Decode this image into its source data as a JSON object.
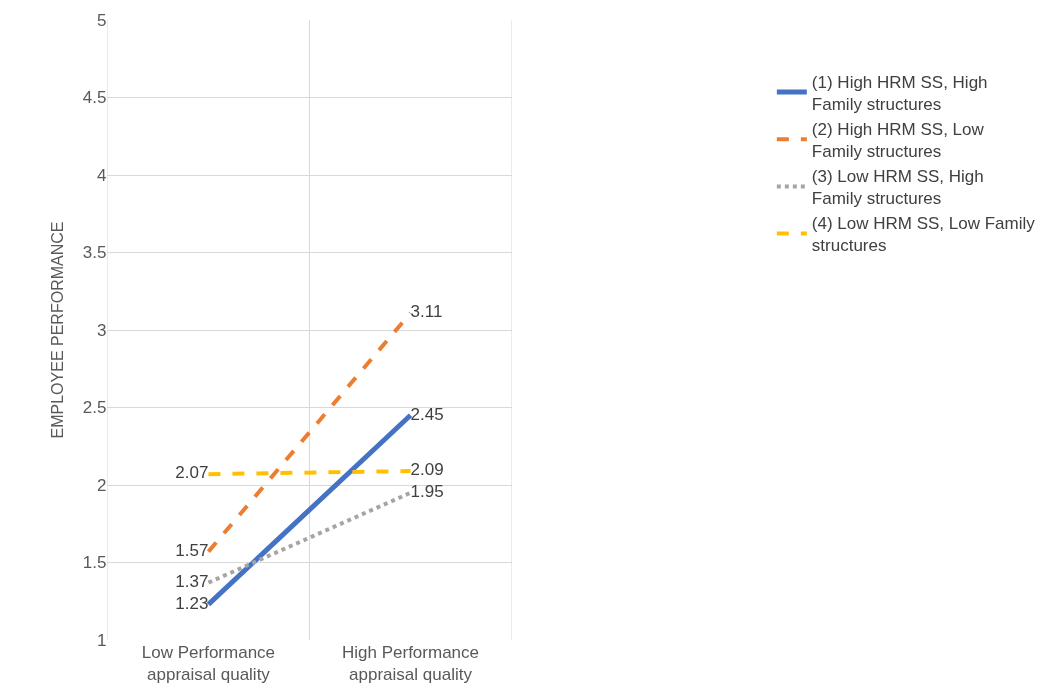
{
  "chart_data": {
    "type": "line",
    "ylabel": "EMPLOYEE PERFORMANCE",
    "categories": [
      "Low Performance appraisal quality",
      "High Performance appraisal quality"
    ],
    "series": [
      {
        "name": "(1) High HRM SS, High Family structures",
        "color": "#4472c4",
        "values": [
          1.23,
          2.45
        ],
        "line_style": "solid"
      },
      {
        "name": "(2) High HRM SS, Low Family structures",
        "color": "#ed7d31",
        "values": [
          1.57,
          3.11
        ],
        "line_style": "dashed"
      },
      {
        "name": "(3) Low HRM SS, High Family structures",
        "color": "#a5a5a5",
        "values": [
          1.37,
          1.95
        ],
        "line_style": "dotted"
      },
      {
        "name": "(4) Low HRM SS, Low Family structures",
        "color": "#ffc000",
        "values": [
          2.07,
          2.09
        ],
        "line_style": "dashed"
      }
    ],
    "ylim": [
      1,
      5
    ],
    "yticks": [
      1,
      1.5,
      2,
      2.5,
      3,
      3.5,
      4,
      4.5,
      5
    ],
    "grid": true,
    "legend": "right",
    "marker": "none",
    "data_labels": true
  }
}
